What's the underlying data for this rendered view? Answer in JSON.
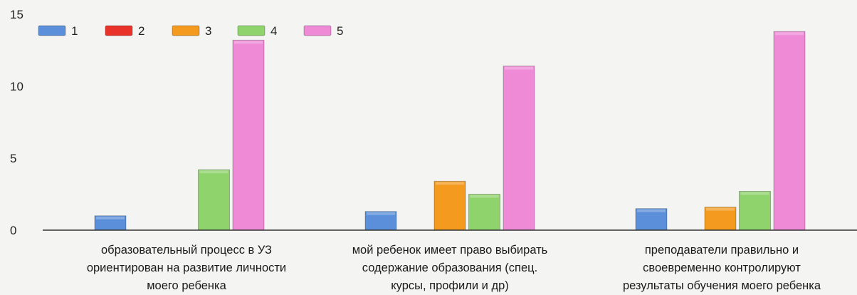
{
  "chart_data": {
    "type": "bar",
    "categories": [
      [
        "образовательный процесс в УЗ",
        "ориентирован на развитие личности",
        "моего ребенка"
      ],
      [
        "мой ребенок имеет право выбирать",
        "содержание образования (спец.",
        "курсы, профили и др)"
      ],
      [
        "преподаватели правильно и",
        "своевременно контролируют",
        "результаты обучения моего ребенка"
      ]
    ],
    "series": [
      {
        "name": "1",
        "color": "#5b8fd9",
        "values": [
          1,
          1.3,
          1.5
        ]
      },
      {
        "name": "2",
        "color": "#e8322a",
        "values": [
          0,
          0,
          0
        ]
      },
      {
        "name": "3",
        "color": "#f39a1f",
        "values": [
          0,
          3.4,
          1.6
        ]
      },
      {
        "name": "4",
        "color": "#8fd36d",
        "values": [
          4.2,
          2.5,
          2.7
        ]
      },
      {
        "name": "5",
        "color": "#ee8ad6",
        "values": [
          13.2,
          11.4,
          13.8
        ]
      }
    ],
    "ylim": [
      0,
      15
    ],
    "yticks": [
      0,
      5,
      10,
      15
    ],
    "legend_position": "top-left",
    "grid": false
  }
}
